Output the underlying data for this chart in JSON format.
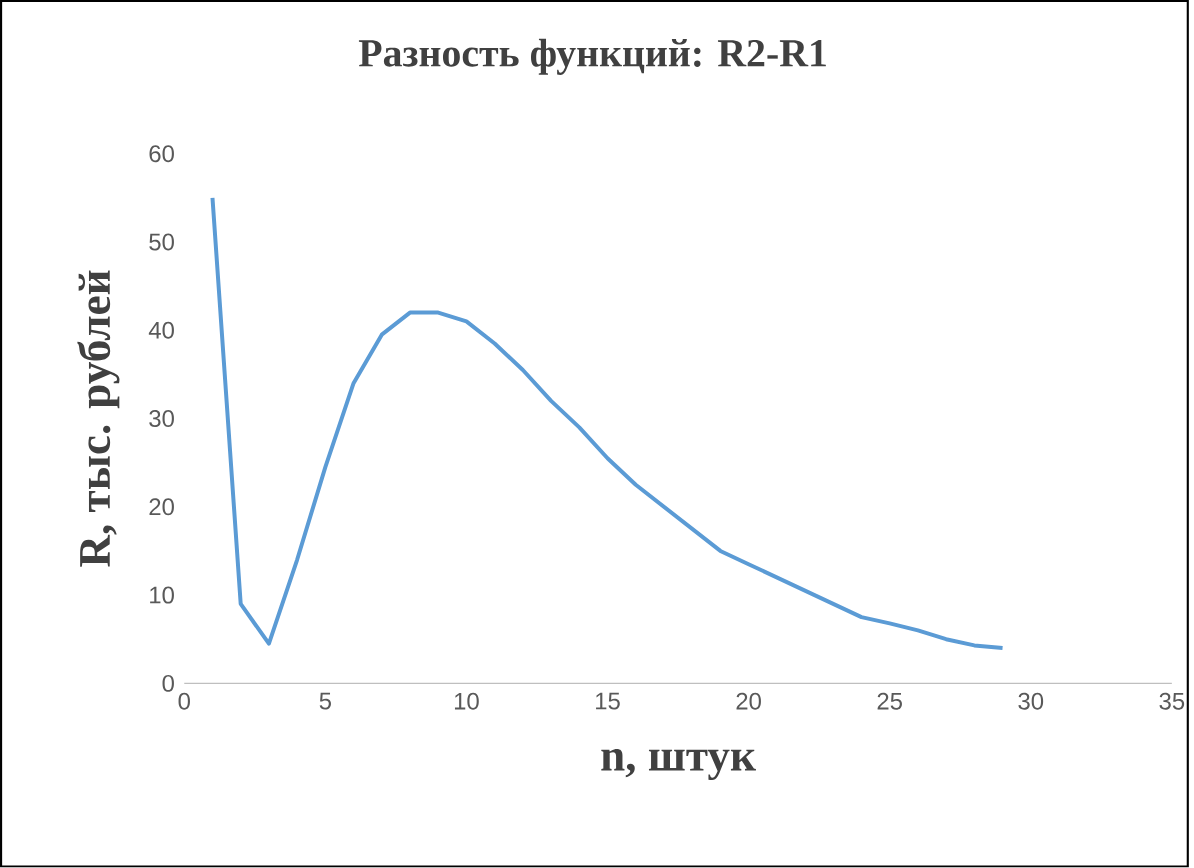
{
  "chart_data": {
    "type": "line",
    "title": "Разность функций: R2-R1",
    "xlabel": "n, штук",
    "ylabel": "R, тыс. рублей",
    "x": [
      1,
      2,
      3,
      4,
      5,
      6,
      7,
      8,
      9,
      10,
      11,
      12,
      13,
      14,
      15,
      16,
      17,
      18,
      19,
      20,
      21,
      22,
      23,
      24,
      25,
      26,
      27,
      28,
      29
    ],
    "series": [
      {
        "color": "#5b9bd5",
        "values": [
          55,
          9,
          4.5,
          14,
          24.5,
          34,
          39.5,
          42,
          42,
          41,
          38.5,
          35.5,
          32,
          29,
          25.5,
          22.5,
          20,
          17.5,
          15,
          13.5,
          12,
          10.5,
          9,
          7.5,
          6.8,
          6,
          5,
          4.3,
          4
        ]
      }
    ],
    "xlim": [
      0,
      35
    ],
    "ylim": [
      0,
      60
    ],
    "xticks": [
      0,
      5,
      10,
      15,
      20,
      25,
      30,
      35
    ],
    "yticks": [
      0,
      10,
      20,
      30,
      40,
      50,
      60
    ],
    "grid": false,
    "marker": "none",
    "line_style": "solid"
  }
}
